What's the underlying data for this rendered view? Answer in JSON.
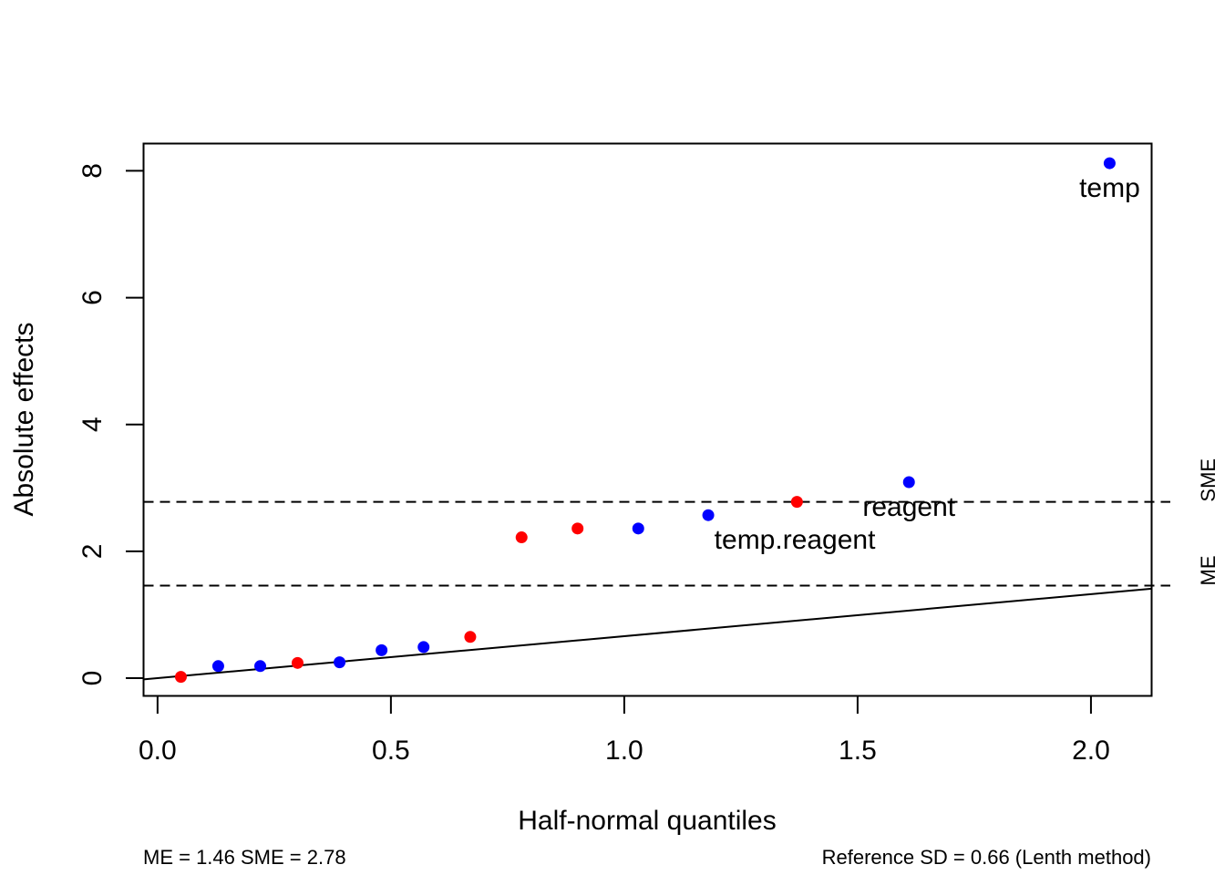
{
  "chart_data": {
    "type": "scatter",
    "xlabel": "Half-normal quantiles",
    "ylabel": "Absolute effects",
    "xlim": [
      -0.03,
      2.13
    ],
    "ylim": [
      -0.28,
      8.43
    ],
    "x_ticks": [
      {
        "value": 0.0,
        "label": "0.0"
      },
      {
        "value": 0.5,
        "label": "0.5"
      },
      {
        "value": 1.0,
        "label": "1.0"
      },
      {
        "value": 1.5,
        "label": "1.5"
      },
      {
        "value": 2.0,
        "label": "2.0"
      }
    ],
    "y_ticks": [
      {
        "value": 0,
        "label": "0"
      },
      {
        "value": 2,
        "label": "2"
      },
      {
        "value": 4,
        "label": "4"
      },
      {
        "value": 6,
        "label": "6"
      },
      {
        "value": 8,
        "label": "8"
      }
    ],
    "points": [
      {
        "x": 0.05,
        "y": 0.02,
        "color": "#FF0000"
      },
      {
        "x": 0.13,
        "y": 0.19,
        "color": "#0000FF"
      },
      {
        "x": 0.22,
        "y": 0.19,
        "color": "#0000FF"
      },
      {
        "x": 0.3,
        "y": 0.24,
        "color": "#FF0000"
      },
      {
        "x": 0.39,
        "y": 0.25,
        "color": "#0000FF"
      },
      {
        "x": 0.48,
        "y": 0.44,
        "color": "#0000FF"
      },
      {
        "x": 0.57,
        "y": 0.49,
        "color": "#0000FF"
      },
      {
        "x": 0.67,
        "y": 0.65,
        "color": "#FF0000"
      },
      {
        "x": 0.78,
        "y": 2.22,
        "color": "#FF0000"
      },
      {
        "x": 0.9,
        "y": 2.36,
        "color": "#FF0000"
      },
      {
        "x": 1.03,
        "y": 2.36,
        "color": "#0000FF"
      },
      {
        "x": 1.18,
        "y": 2.57,
        "color": "#0000FF",
        "label": "temp.reagent"
      },
      {
        "x": 1.37,
        "y": 2.78,
        "color": "#FF0000"
      },
      {
        "x": 1.61,
        "y": 3.09,
        "color": "#0000FF",
        "label": "reagent"
      },
      {
        "x": 2.04,
        "y": 8.12,
        "color": "#0000FF",
        "label": "temp"
      }
    ],
    "reference_line": {
      "x": [
        -0.03,
        2.13
      ],
      "y": [
        -0.02,
        1.41
      ]
    },
    "threshold_lines": [
      {
        "name": "ME",
        "value": 1.46
      },
      {
        "name": "SME",
        "value": 2.78
      }
    ],
    "footer_left": "ME = 1.46  SME = 2.78",
    "footer_right": "Reference SD = 0.66 (Lenth method)",
    "grid": false,
    "colors": {
      "positive": "#0000FF",
      "negative": "#FF0000"
    }
  }
}
